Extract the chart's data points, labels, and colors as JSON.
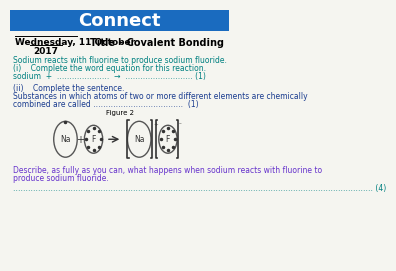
{
  "title": "Connect",
  "title_bg": "#1a6bbf",
  "title_color": "#ffffff",
  "date_line1": "Wednesday, 11 October",
  "date_line2": "2017",
  "subtitle": "Title – Covalent Bonding",
  "green_text": "Sodium reacts with fluorine to produce sodium fluoride.",
  "q1_label": "(i)    Complete the word equation for this reaction.",
  "q1_eq": "sodium  +  …………………  →  ……………………… (1)",
  "q2_label": "(ii)    Complete the sentence.",
  "q2_text1": "Substances in which atoms of two or more different elements are chemically",
  "q2_text2": "combined are called ………………………………  (1)",
  "fig_label": "Figure 2",
  "describe_text1": "Describe, as fully as you can, what happens when sodium reacts with fluorine to",
  "describe_text2": "produce sodium fluoride.",
  "dots_line": "……………………………………………………………………………………………………………………………… (4)",
  "bg_color": "#f5f5f0",
  "teal_color": "#008080",
  "blue_color": "#1a3c8f",
  "purple_color": "#6633cc",
  "black_color": "#000000",
  "circle_edge": "#555555",
  "atom_text": "#333333"
}
